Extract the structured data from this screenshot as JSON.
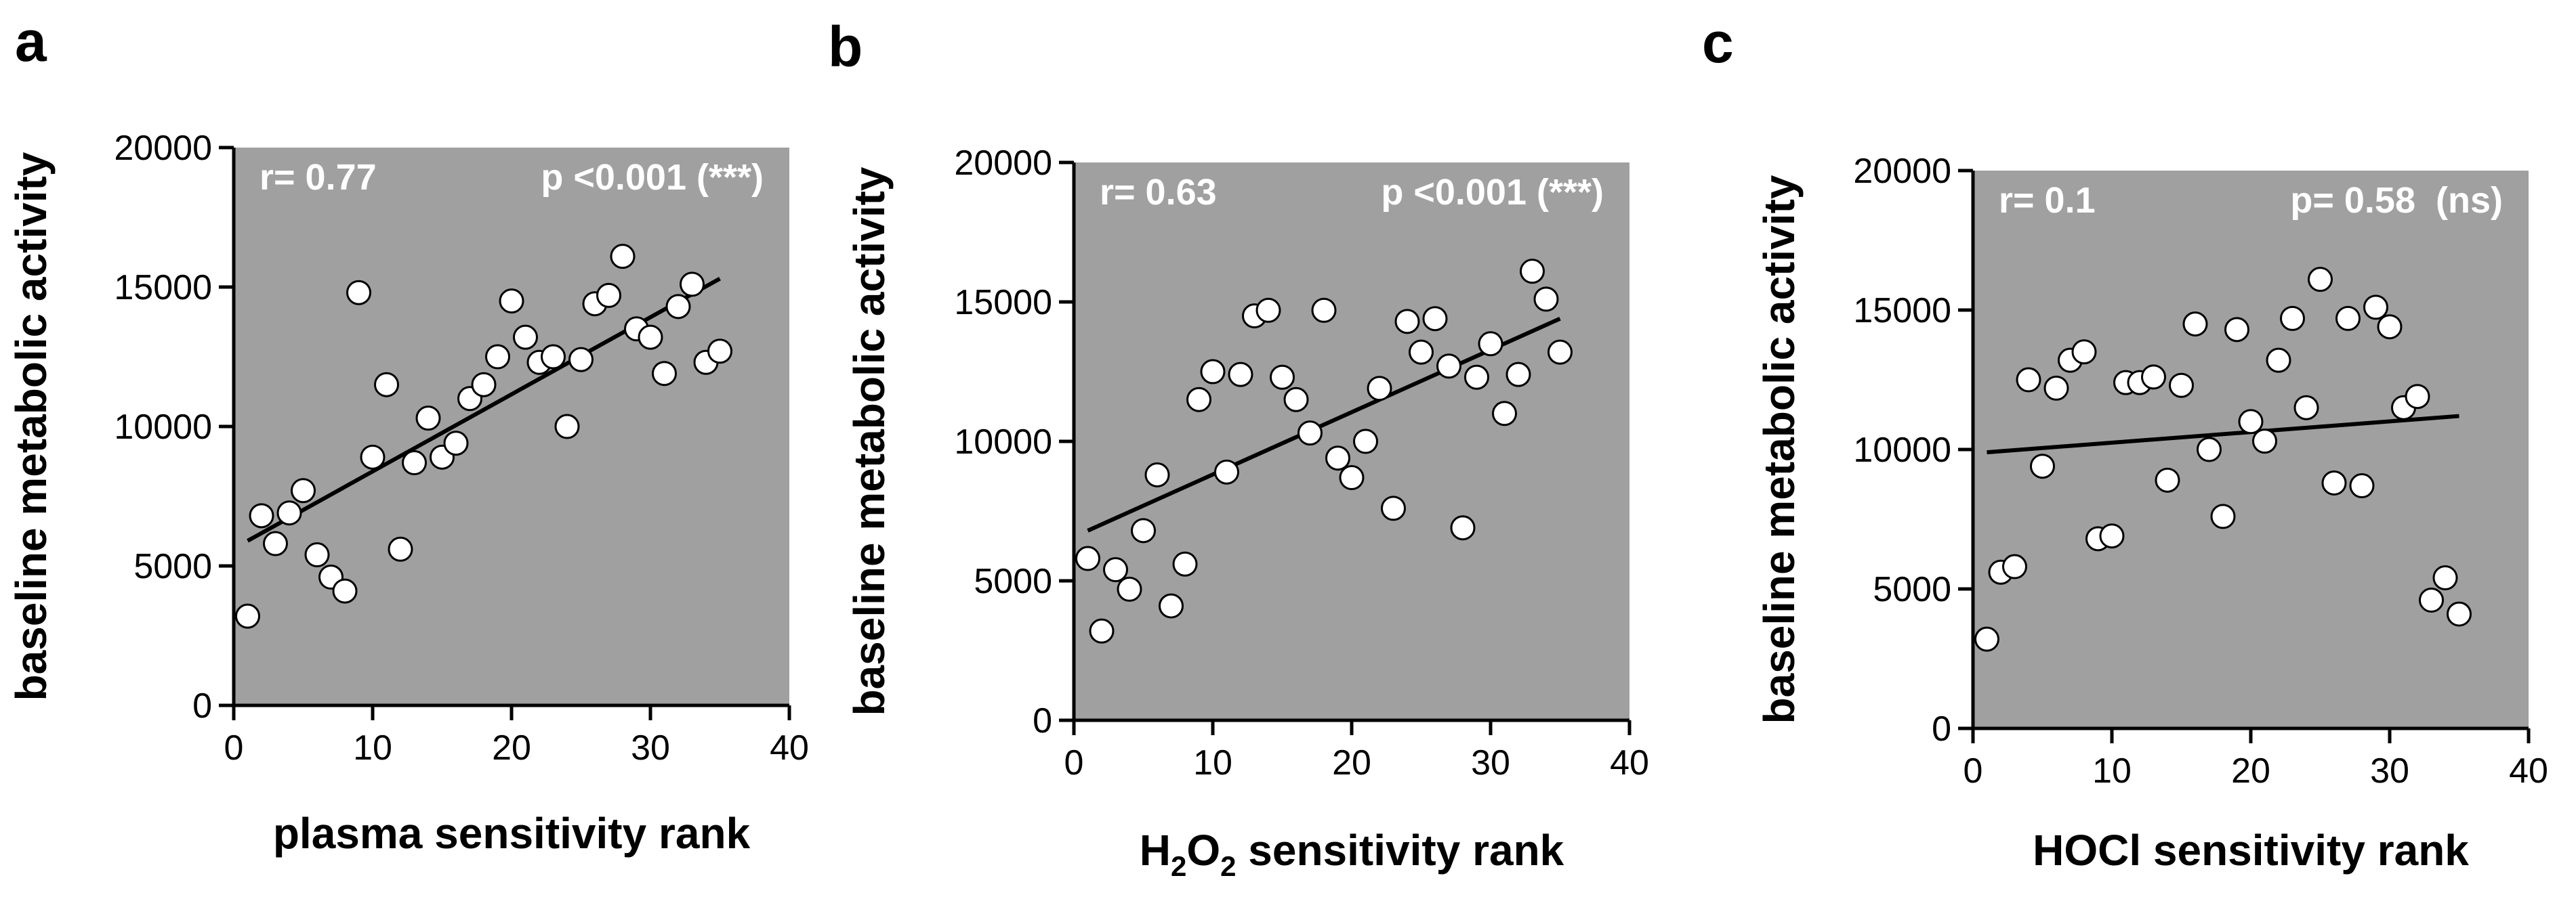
{
  "chart_data": [
    {
      "type": "scatter",
      "panel_letter": "a",
      "xlabel": "plasma sensitivity rank",
      "ylabel": "baseline metabolic activity",
      "xlim": [
        0,
        40
      ],
      "ylim": [
        0,
        20000
      ],
      "x_ticks": [
        0,
        10,
        20,
        30,
        40
      ],
      "y_ticks": [
        0,
        5000,
        10000,
        15000,
        20000
      ],
      "annotation_left": "r= 0.77",
      "annotation_right": "p <0.001 (***)",
      "fit_line": {
        "x": [
          1,
          35
        ],
        "y": [
          5900,
          15300
        ]
      },
      "points": [
        {
          "x": 1,
          "y": 3200
        },
        {
          "x": 2,
          "y": 6800
        },
        {
          "x": 3,
          "y": 5800
        },
        {
          "x": 4,
          "y": 6900
        },
        {
          "x": 5,
          "y": 7700
        },
        {
          "x": 6,
          "y": 5400
        },
        {
          "x": 7,
          "y": 4600
        },
        {
          "x": 8,
          "y": 4100
        },
        {
          "x": 9,
          "y": 14800
        },
        {
          "x": 10,
          "y": 8900
        },
        {
          "x": 11,
          "y": 11500
        },
        {
          "x": 12,
          "y": 5600
        },
        {
          "x": 13,
          "y": 8700
        },
        {
          "x": 14,
          "y": 10300
        },
        {
          "x": 15,
          "y": 8900
        },
        {
          "x": 16,
          "y": 9400
        },
        {
          "x": 17,
          "y": 11000
        },
        {
          "x": 18,
          "y": 11500
        },
        {
          "x": 19,
          "y": 12500
        },
        {
          "x": 20,
          "y": 14500
        },
        {
          "x": 21,
          "y": 13200
        },
        {
          "x": 22,
          "y": 12300
        },
        {
          "x": 23,
          "y": 12500
        },
        {
          "x": 24,
          "y": 10000
        },
        {
          "x": 25,
          "y": 12400
        },
        {
          "x": 26,
          "y": 14400
        },
        {
          "x": 27,
          "y": 14700
        },
        {
          "x": 28,
          "y": 16100
        },
        {
          "x": 29,
          "y": 13500
        },
        {
          "x": 30,
          "y": 13200
        },
        {
          "x": 31,
          "y": 11900
        },
        {
          "x": 32,
          "y": 14300
        },
        {
          "x": 33,
          "y": 15100
        },
        {
          "x": 34,
          "y": 12300
        },
        {
          "x": 35,
          "y": 12700
        }
      ]
    },
    {
      "type": "scatter",
      "panel_letter": "b",
      "xlabel_parts": [
        "H",
        "2",
        "O",
        "2",
        " sensitivity rank"
      ],
      "ylabel": "baseline metabolic activity",
      "xlim": [
        0,
        40
      ],
      "ylim": [
        0,
        20000
      ],
      "x_ticks": [
        0,
        10,
        20,
        30,
        40
      ],
      "y_ticks": [
        0,
        5000,
        10000,
        15000,
        20000
      ],
      "annotation_left": "r= 0.63",
      "annotation_right": "p <0.001 (***)",
      "fit_line": {
        "x": [
          1,
          35
        ],
        "y": [
          6800,
          14400
        ]
      },
      "points": [
        {
          "x": 1,
          "y": 5800
        },
        {
          "x": 2,
          "y": 3200
        },
        {
          "x": 3,
          "y": 5400
        },
        {
          "x": 4,
          "y": 4700
        },
        {
          "x": 5,
          "y": 6800
        },
        {
          "x": 6,
          "y": 8800
        },
        {
          "x": 7,
          "y": 4100
        },
        {
          "x": 8,
          "y": 5600
        },
        {
          "x": 9,
          "y": 11500
        },
        {
          "x": 10,
          "y": 12500
        },
        {
          "x": 11,
          "y": 8900
        },
        {
          "x": 12,
          "y": 12400
        },
        {
          "x": 13,
          "y": 14500
        },
        {
          "x": 14,
          "y": 14700
        },
        {
          "x": 15,
          "y": 12300
        },
        {
          "x": 16,
          "y": 11500
        },
        {
          "x": 17,
          "y": 10300
        },
        {
          "x": 18,
          "y": 14700
        },
        {
          "x": 19,
          "y": 9400
        },
        {
          "x": 20,
          "y": 8700
        },
        {
          "x": 21,
          "y": 10000
        },
        {
          "x": 22,
          "y": 11900
        },
        {
          "x": 23,
          "y": 7600
        },
        {
          "x": 24,
          "y": 14300
        },
        {
          "x": 25,
          "y": 13200
        },
        {
          "x": 26,
          "y": 14400
        },
        {
          "x": 27,
          "y": 12700
        },
        {
          "x": 28,
          "y": 6900
        },
        {
          "x": 29,
          "y": 12300
        },
        {
          "x": 30,
          "y": 13500
        },
        {
          "x": 31,
          "y": 11000
        },
        {
          "x": 32,
          "y": 12400
        },
        {
          "x": 33,
          "y": 16100
        },
        {
          "x": 34,
          "y": 15100
        },
        {
          "x": 35,
          "y": 13200
        }
      ]
    },
    {
      "type": "scatter",
      "panel_letter": "c",
      "xlabel": "HOCl sensitivity rank",
      "ylabel": "baseline metabolic activity",
      "xlim": [
        0,
        40
      ],
      "ylim": [
        0,
        20000
      ],
      "x_ticks": [
        0,
        10,
        20,
        30,
        40
      ],
      "y_ticks": [
        0,
        5000,
        10000,
        15000,
        20000
      ],
      "annotation_left": "r= 0.1",
      "annotation_right": "p= 0.58  (ns)",
      "fit_line": {
        "x": [
          1,
          35
        ],
        "y": [
          9900,
          11200
        ]
      },
      "points": [
        {
          "x": 1,
          "y": 3200
        },
        {
          "x": 2,
          "y": 5600
        },
        {
          "x": 3,
          "y": 5800
        },
        {
          "x": 4,
          "y": 12500
        },
        {
          "x": 5,
          "y": 9400
        },
        {
          "x": 6,
          "y": 12200
        },
        {
          "x": 7,
          "y": 13200
        },
        {
          "x": 8,
          "y": 13500
        },
        {
          "x": 9,
          "y": 6800
        },
        {
          "x": 10,
          "y": 6900
        },
        {
          "x": 11,
          "y": 12400
        },
        {
          "x": 12,
          "y": 12400
        },
        {
          "x": 13,
          "y": 12600
        },
        {
          "x": 14,
          "y": 8900
        },
        {
          "x": 15,
          "y": 12300
        },
        {
          "x": 16,
          "y": 14500
        },
        {
          "x": 17,
          "y": 10000
        },
        {
          "x": 18,
          "y": 7600
        },
        {
          "x": 19,
          "y": 14300
        },
        {
          "x": 20,
          "y": 11000
        },
        {
          "x": 21,
          "y": 10300
        },
        {
          "x": 22,
          "y": 13200
        },
        {
          "x": 23,
          "y": 14700
        },
        {
          "x": 24,
          "y": 11500
        },
        {
          "x": 25,
          "y": 16100
        },
        {
          "x": 26,
          "y": 8800
        },
        {
          "x": 27,
          "y": 14700
        },
        {
          "x": 28,
          "y": 8700
        },
        {
          "x": 29,
          "y": 15100
        },
        {
          "x": 30,
          "y": 14400
        },
        {
          "x": 31,
          "y": 11500
        },
        {
          "x": 32,
          "y": 11900
        },
        {
          "x": 33,
          "y": 4600
        },
        {
          "x": 34,
          "y": 5400
        },
        {
          "x": 35,
          "y": 4100
        }
      ]
    }
  ]
}
